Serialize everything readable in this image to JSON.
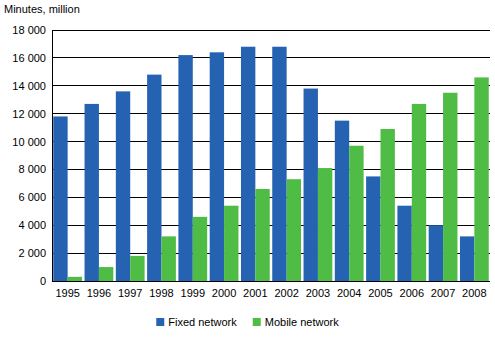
{
  "chart_data": {
    "type": "bar",
    "y_label": "Minutes, million",
    "categories": [
      "1995",
      "1996",
      "1997",
      "1998",
      "1999",
      "2000",
      "2001",
      "2002",
      "2003",
      "2004",
      "2005",
      "2006",
      "2007",
      "2008"
    ],
    "series": [
      {
        "name": "Fixed network",
        "color": "#2563b2",
        "values": [
          11800,
          12700,
          13600,
          14800,
          16200,
          16400,
          16800,
          16800,
          13800,
          11500,
          7500,
          5400,
          4000,
          3200
        ]
      },
      {
        "name": "Mobile network",
        "color": "#4fbd45",
        "values": [
          300,
          1000,
          1800,
          3200,
          4600,
          5400,
          6600,
          7300,
          8100,
          9700,
          10900,
          12700,
          13500,
          14600
        ]
      }
    ],
    "ylim": [
      0,
      18000
    ],
    "yticks": [
      0,
      {
        "value": 2000,
        "label": "2 000"
      },
      {
        "value": 4000,
        "label": "4 000"
      },
      {
        "value": 6000,
        "label": "6 000"
      },
      {
        "value": 8000,
        "label": "8 000"
      },
      {
        "value": 10000,
        "label": "10 000"
      },
      {
        "value": 12000,
        "label": "12 000"
      },
      {
        "value": 14000,
        "label": "14 000"
      },
      {
        "value": 16000,
        "label": "16 000"
      },
      {
        "value": 18000,
        "label": "18 000"
      }
    ],
    "grid": true,
    "legend": "bottom"
  }
}
